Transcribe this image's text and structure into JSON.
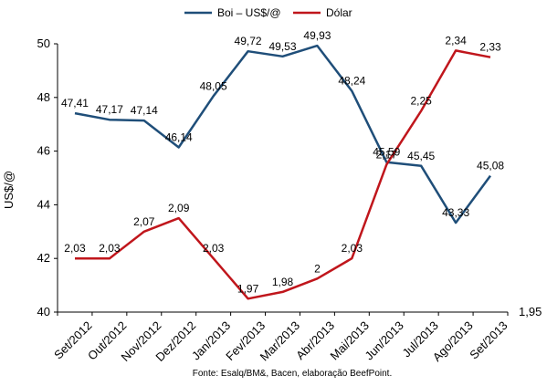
{
  "chart_data": {
    "type": "line",
    "categories": [
      "Set/2012",
      "Out/2012",
      "Nov/2012",
      "Dez/2012",
      "Jan/2013",
      "Fev/2013",
      "Mar/2013",
      "Abr/2013",
      "Mai/2013",
      "Jun/2013",
      "Jul/2013",
      "Ago/2013",
      "Set/2013"
    ],
    "series": [
      {
        "name": "Boi – US$/@",
        "color": "#1f4e79",
        "axis": "left",
        "values": [
          47.41,
          47.17,
          47.14,
          46.14,
          48.05,
          49.72,
          49.53,
          49.93,
          48.24,
          45.59,
          45.45,
          43.33,
          45.08
        ],
        "labels": [
          "47,41",
          "47,17",
          "47,14",
          "46,14",
          "48,05",
          "49,72",
          "49,53",
          "49,93",
          "48,24",
          "45,59",
          "45,45",
          "43,33",
          "45,08"
        ]
      },
      {
        "name": "Dólar",
        "color": "#c0161c",
        "axis": "right",
        "values": [
          2.03,
          2.03,
          2.07,
          2.09,
          2.03,
          1.97,
          1.98,
          2.0,
          2.03,
          2.17,
          2.25,
          2.34,
          2.33
        ],
        "labels": [
          "2,03",
          "2,03",
          "2,07",
          "2,09",
          "2,03",
          "1,97",
          "1,98",
          "2",
          "2,03",
          "2,17",
          "2,25",
          "2,34",
          "2,33"
        ]
      }
    ],
    "ylabel": "US$/@",
    "ylim": [
      40,
      50
    ],
    "yticks": [
      "40",
      "42",
      "44",
      "46",
      "48",
      "50"
    ],
    "y2lim": [
      1.95,
      2.35
    ],
    "y2ticks": [
      "1,95"
    ],
    "grid": false,
    "legend": "top",
    "source": "Fonte: Esalq/BM&, Bacen, elaboração BeefPoint."
  }
}
